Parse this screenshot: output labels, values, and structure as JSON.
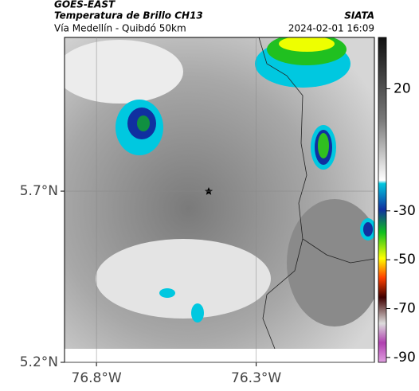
{
  "header": {
    "agency": "GOES-EAST",
    "product": "Temperatura de Brillo CH13",
    "route": "Vía Medellín - Quibdó 50km",
    "source": "SIATA",
    "datetime": "2024-02-01 16:09"
  },
  "map": {
    "xlim": [
      -76.9,
      -75.93
    ],
    "ylim": [
      5.2,
      6.149
    ],
    "xticks": [
      {
        "value": -76.8,
        "label": "76.8°W"
      },
      {
        "value": -76.3,
        "label": "76.3°W"
      }
    ],
    "yticks": [
      {
        "value": 5.7,
        "label": "5.7°N"
      },
      {
        "value": 5.2,
        "label": "5.2°N"
      }
    ],
    "colorbar": {
      "lim": [
        -92,
        41
      ],
      "ticks": [
        20,
        -30,
        -50,
        -70,
        -90
      ]
    }
  }
}
